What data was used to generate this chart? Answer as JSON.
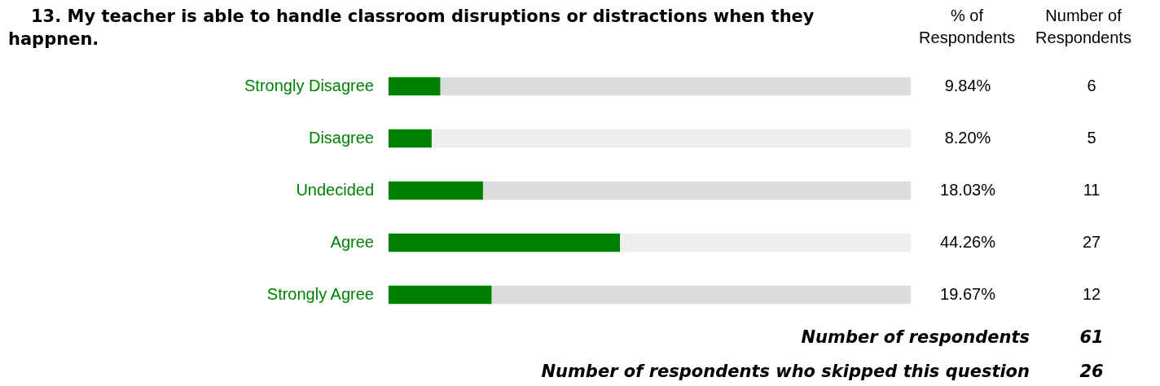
{
  "chart_data": {
    "type": "bar",
    "orientation": "horizontal",
    "stacked": true,
    "title": "13. My teacher is able to handle classroom disruptions or distractions when they happnen.",
    "categories": [
      "Strongly Disagree",
      "Disagree",
      "Undecided",
      "Agree",
      "Strongly Agree"
    ],
    "series": [
      {
        "color": "#008000",
        "values": [
          9.84,
          8.2,
          18.03,
          44.26,
          19.67
        ],
        "value_labels": [
          "9.84%",
          "8.20%",
          "18.03%",
          "44.26%",
          "19.67%"
        ]
      },
      {
        "colors": [
          "#dcdcdc",
          "#eeeeee",
          "#dcdcdc",
          "#eeeeee",
          "#dcdcdc"
        ],
        "values": [
          90.16,
          91.8,
          81.97,
          55.74,
          80.33
        ]
      }
    ],
    "xlim": [
      0,
      100
    ],
    "tick_labels": "y",
    "annotations": [
      "% of Respondents",
      "Number of Respondents",
      "6",
      "5",
      "11",
      "27",
      "12",
      "Number of respondents",
      "61",
      "Number of respondents who skipped this question",
      "26"
    ]
  }
}
